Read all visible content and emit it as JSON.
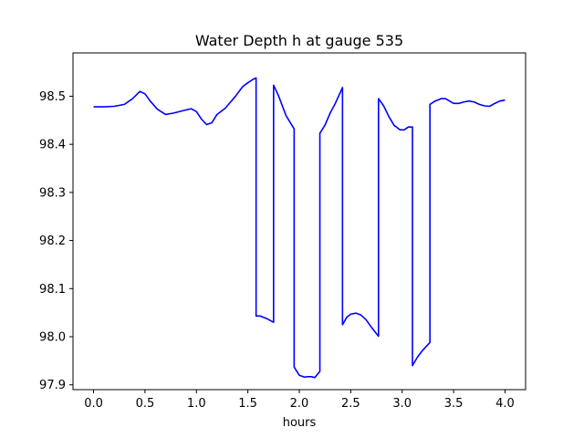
{
  "chart_data": {
    "type": "line",
    "title": "Water Depth h at gauge 535",
    "xlabel": "hours",
    "ylabel": "",
    "xlim": [
      -0.2,
      4.2
    ],
    "ylim": [
      97.89,
      98.59
    ],
    "xticks": [
      0.0,
      0.5,
      1.0,
      1.5,
      2.0,
      2.5,
      3.0,
      3.5,
      4.0
    ],
    "xtick_labels": [
      "0.0",
      "0.5",
      "1.0",
      "1.5",
      "2.0",
      "2.5",
      "3.0",
      "3.5",
      "4.0"
    ],
    "yticks": [
      97.9,
      98.0,
      98.1,
      98.2,
      98.3,
      98.4,
      98.5
    ],
    "ytick_labels": [
      "97.9",
      "98.0",
      "98.1",
      "98.2",
      "98.3",
      "98.4",
      "98.5"
    ],
    "grid": false,
    "legend": "none",
    "colors": {
      "line": "#0000ff",
      "axes": "#000000",
      "background": "#ffffff"
    },
    "series": [
      {
        "x": [
          0.0,
          0.1,
          0.2,
          0.3,
          0.38,
          0.45,
          0.5,
          0.55,
          0.62,
          0.7,
          0.78,
          0.87,
          0.95,
          1.0,
          1.05,
          1.1,
          1.15,
          1.2,
          1.28,
          1.38,
          1.45,
          1.5,
          1.55,
          1.58,
          1.58,
          1.62,
          1.68,
          1.75,
          1.75,
          1.8,
          1.87,
          1.95,
          1.95,
          1.97,
          2.0,
          2.05,
          2.08,
          2.12,
          2.15,
          2.2,
          2.2,
          2.25,
          2.3,
          2.35,
          2.42,
          2.42,
          2.46,
          2.5,
          2.55,
          2.6,
          2.65,
          2.7,
          2.77,
          2.77,
          2.82,
          2.87,
          2.92,
          2.98,
          3.02,
          3.06,
          3.1,
          3.1,
          3.15,
          3.2,
          3.27,
          3.27,
          3.32,
          3.38,
          3.42,
          3.46,
          3.5,
          3.55,
          3.6,
          3.65,
          3.7,
          3.75,
          3.8,
          3.85,
          3.9,
          3.95,
          4.0
        ],
        "y": [
          98.478,
          98.478,
          98.479,
          98.483,
          98.495,
          98.51,
          98.505,
          98.49,
          98.473,
          98.462,
          98.465,
          98.47,
          98.474,
          98.468,
          98.452,
          98.441,
          98.445,
          98.462,
          98.475,
          98.5,
          98.52,
          98.528,
          98.535,
          98.538,
          98.043,
          98.043,
          98.038,
          98.03,
          98.523,
          98.5,
          98.46,
          98.432,
          97.937,
          97.93,
          97.92,
          97.916,
          97.917,
          97.917,
          97.915,
          97.928,
          98.423,
          98.44,
          98.465,
          98.485,
          98.518,
          98.025,
          98.04,
          98.047,
          98.049,
          98.045,
          98.035,
          98.02,
          98.001,
          98.495,
          98.48,
          98.458,
          98.44,
          98.43,
          98.43,
          98.436,
          98.436,
          97.94,
          97.958,
          97.972,
          97.988,
          98.483,
          98.49,
          98.495,
          98.495,
          98.49,
          98.485,
          98.485,
          98.488,
          98.49,
          98.488,
          98.483,
          98.48,
          98.479,
          98.485,
          98.49,
          98.492
        ]
      }
    ]
  }
}
